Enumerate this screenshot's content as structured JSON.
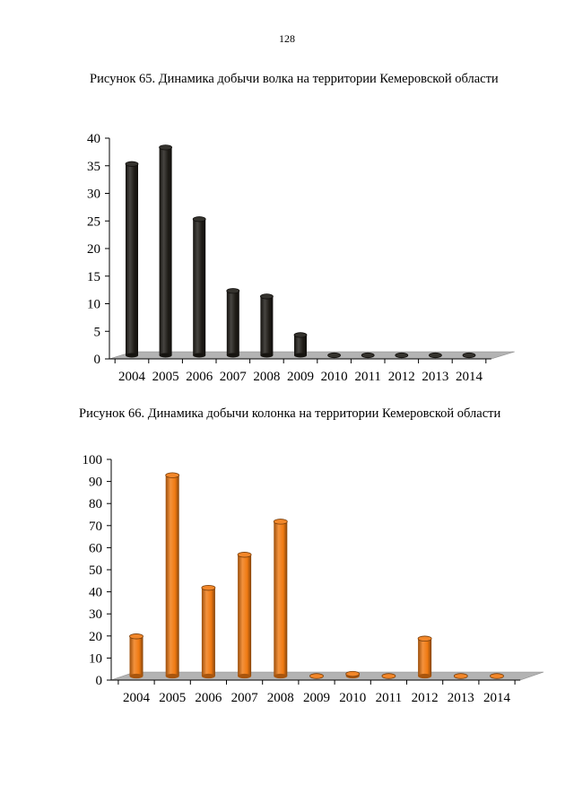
{
  "page_number": "128",
  "figures": [
    {
      "caption": "Рисунок 65. Динамика добычи волка на территории Кемеровской области"
    },
    {
      "caption": "Рисунок 66. Динамика добычи колонка на территории Кемеровской области"
    }
  ],
  "chart_data": [
    {
      "type": "bar",
      "title": "",
      "xlabel": "",
      "ylabel": "",
      "categories": [
        "2004",
        "2005",
        "2006",
        "2007",
        "2008",
        "2009",
        "2010",
        "2011",
        "2012",
        "2013",
        "2014"
      ],
      "values": [
        35,
        38,
        25,
        12,
        11,
        4,
        0,
        0,
        0,
        0,
        0
      ],
      "ylim": [
        0,
        40
      ],
      "yticks": [
        0,
        5,
        10,
        15,
        20,
        25,
        30,
        35,
        40
      ],
      "bar_color": "#1f1c17",
      "floor_color": "#b3b3b3",
      "grid": false,
      "legend": "none"
    },
    {
      "type": "bar",
      "title": "",
      "xlabel": "",
      "ylabel": "",
      "categories": [
        "2004",
        "2005",
        "2006",
        "2007",
        "2008",
        "2009",
        "2010",
        "2011",
        "2012",
        "2013",
        "2014"
      ],
      "values": [
        19,
        92,
        41,
        56,
        71,
        0,
        2,
        1,
        18,
        0,
        0
      ],
      "ylim": [
        0,
        100
      ],
      "yticks": [
        0,
        10,
        20,
        30,
        40,
        50,
        60,
        70,
        80,
        90,
        100
      ],
      "bar_color": "#f07a12",
      "floor_color": "#b3b3b3",
      "grid": false,
      "legend": "none"
    }
  ]
}
